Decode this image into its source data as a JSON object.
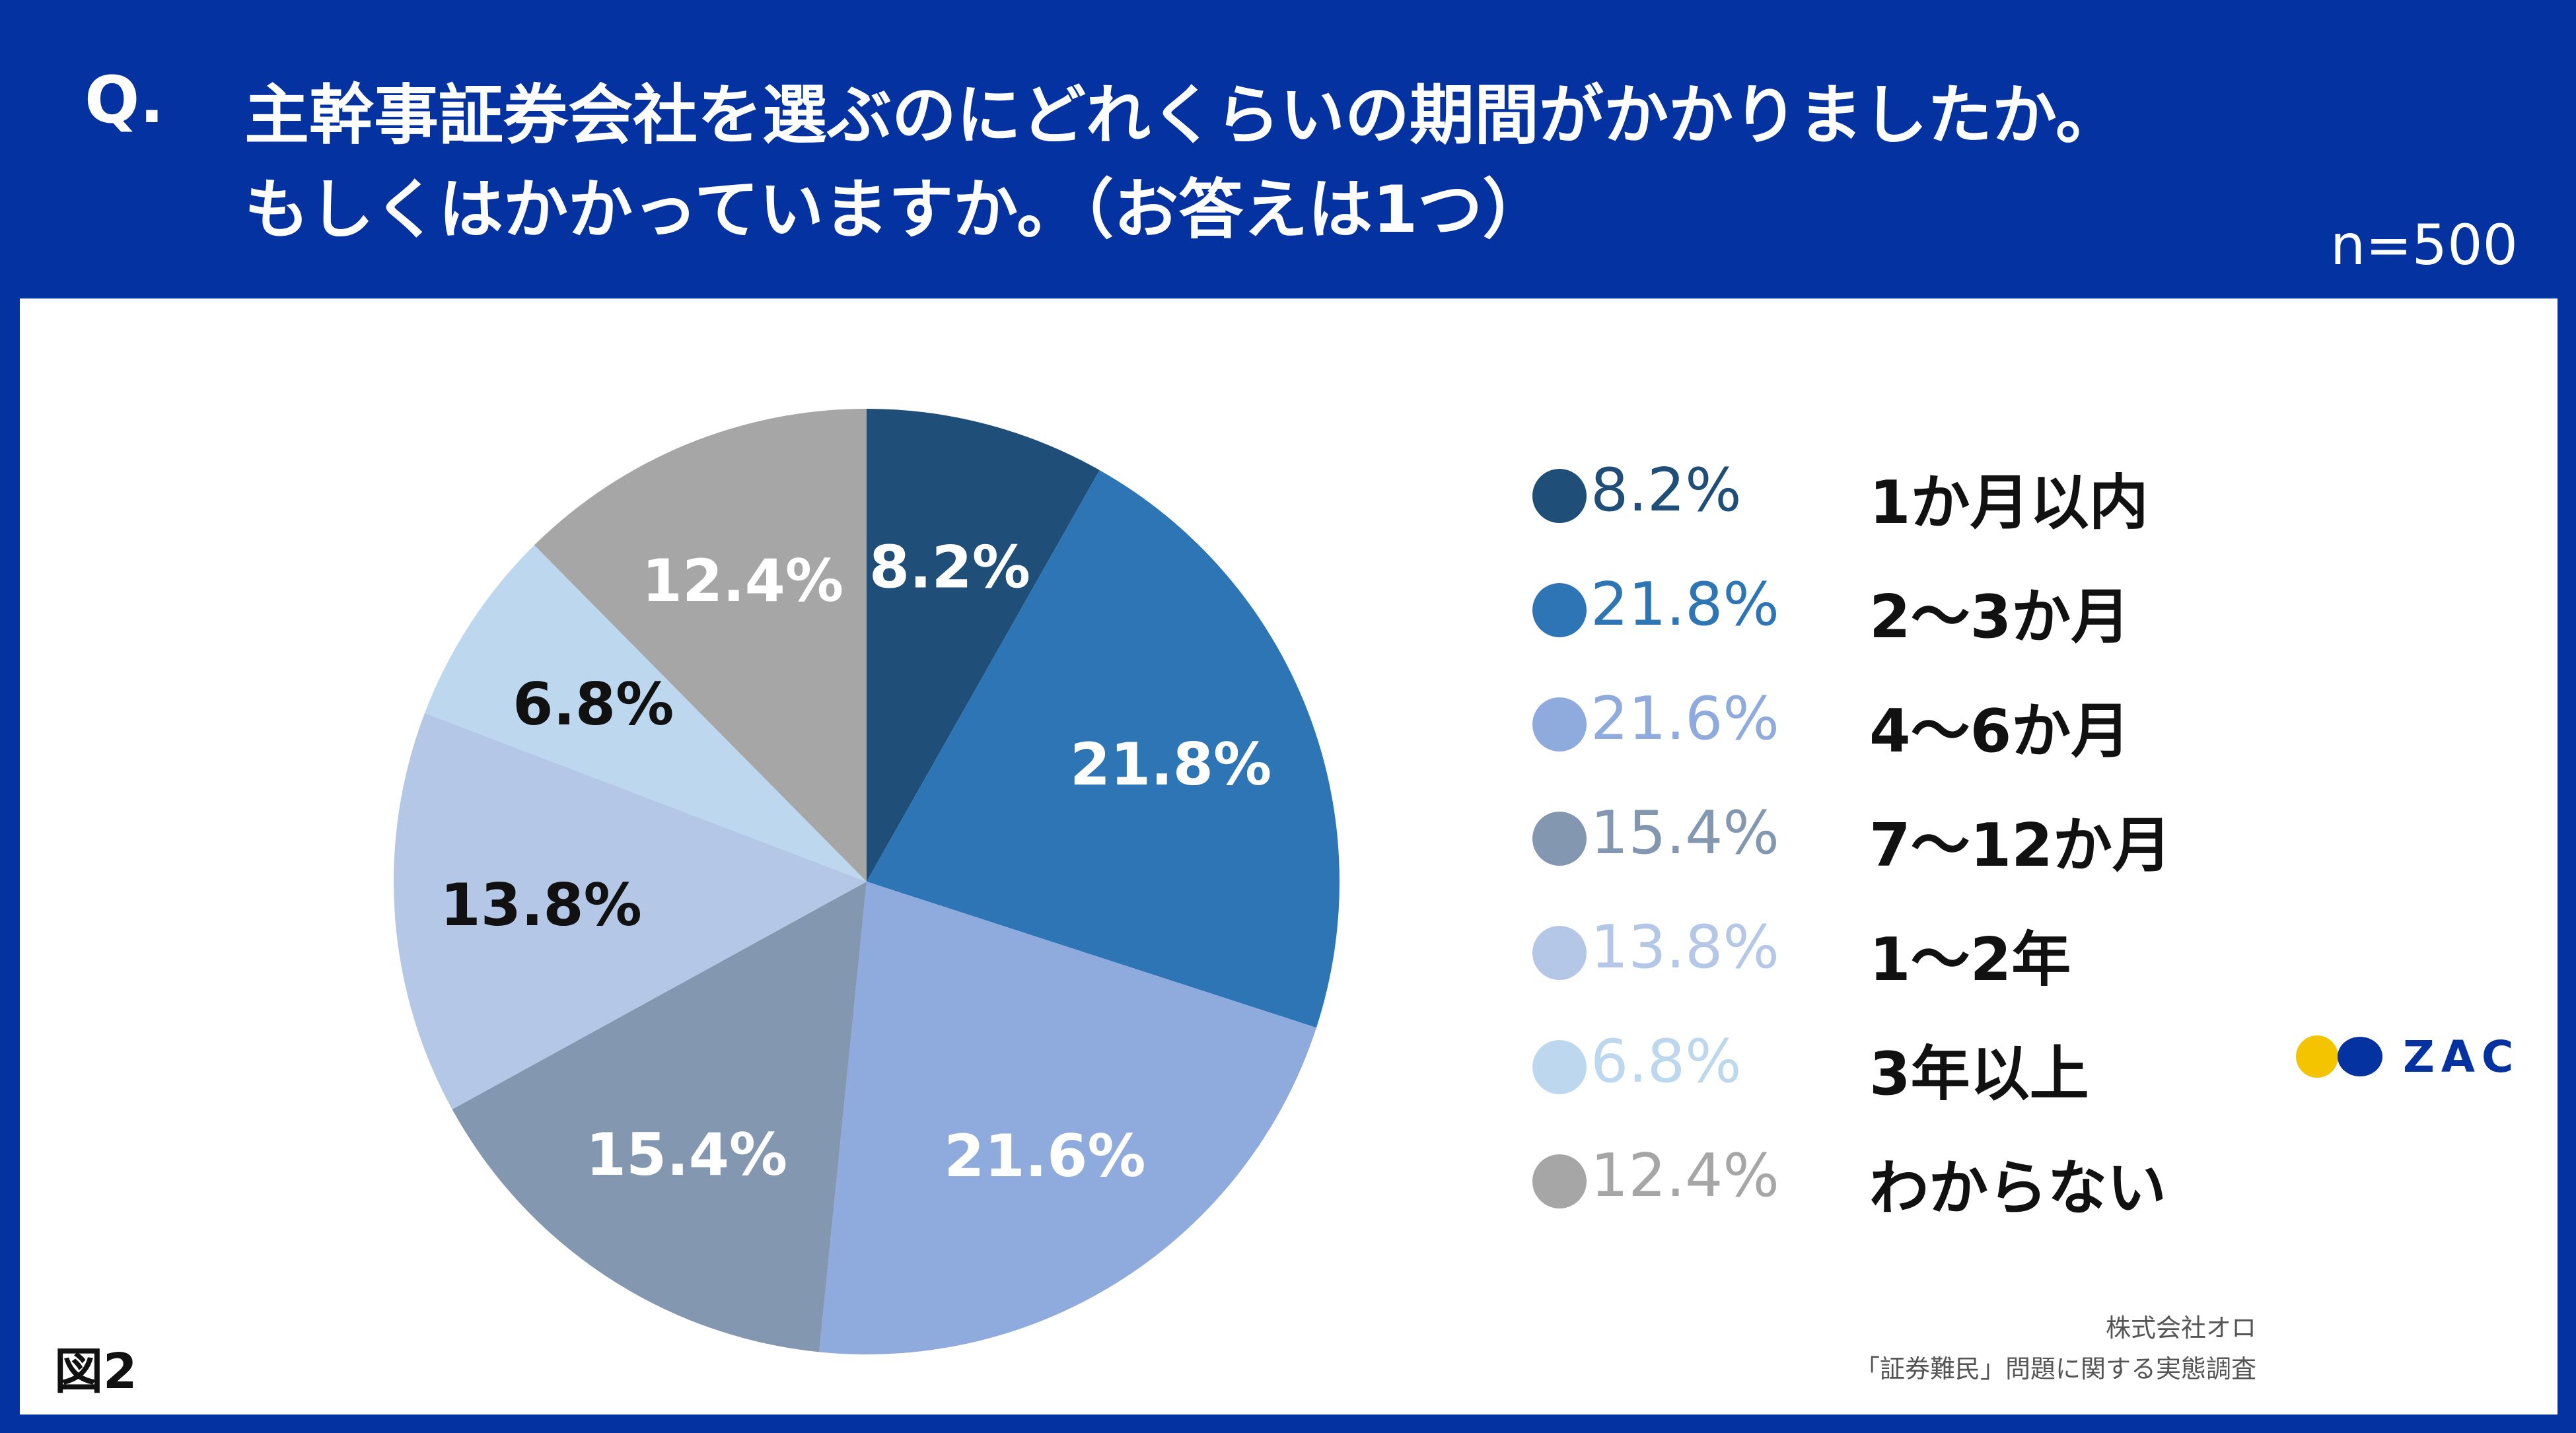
{
  "header": {
    "q_mark": "Q.",
    "question_line1": "主幹事証券会社を選ぶのにどれくらいの期間がかかりましたか。",
    "question_line2": "もしくはかかっていますか。（お答えは1つ）",
    "sample_size": "n=500"
  },
  "chart_data": {
    "type": "pie",
    "title": "主幹事証券会社を選ぶのにどれくらいの期間がかかりましたか。もしくはかかっていますか。（お答えは1つ）",
    "start": "12 o'clock, clockwise",
    "slices": [
      {
        "label": "1か月以内",
        "value": 8.2,
        "display": "8.2%",
        "color": "#1f4e79",
        "text_color": "#ffffff"
      },
      {
        "label": "2〜3か月",
        "value": 21.8,
        "display": "21.8%",
        "color": "#2e75b6",
        "text_color": "#ffffff"
      },
      {
        "label": "4〜6か月",
        "value": 21.6,
        "display": "21.6%",
        "color": "#8faadc",
        "text_color": "#ffffff"
      },
      {
        "label": "7〜12か月",
        "value": 15.4,
        "display": "15.4%",
        "color": "#8497b0",
        "text_color": "#ffffff"
      },
      {
        "label": "1〜2年",
        "value": 13.8,
        "display": "13.8%",
        "color": "#b4c7e7",
        "text_color": "#111111"
      },
      {
        "label": "3年以上",
        "value": 6.8,
        "display": "6.8%",
        "color": "#bdd7ee",
        "text_color": "#111111"
      },
      {
        "label": "わからない",
        "value": 12.4,
        "display": "12.4%",
        "color": "#a6a6a6",
        "text_color": "#ffffff"
      }
    ]
  },
  "footer": {
    "figure_number": "図2",
    "credit_line1": "株式会社オロ",
    "credit_line2": "「証券難民」問題に関する実態調査",
    "logo_text": "ZAC",
    "logo_colors": {
      "dot1": "#f5c400",
      "dot2": "#0432a0"
    }
  }
}
